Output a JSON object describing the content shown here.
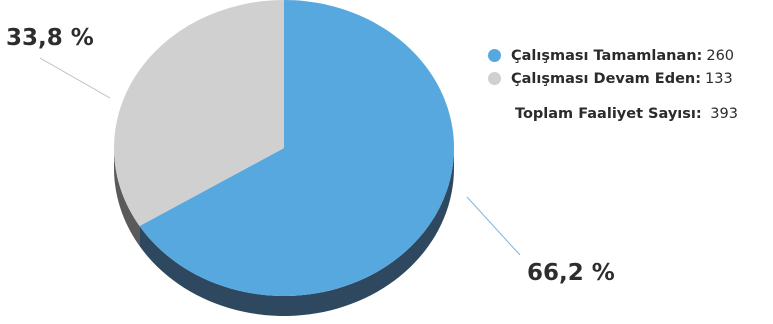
{
  "chart_data": {
    "type": "pie",
    "slices": [
      {
        "label": "Çalışması Tamamlanan:",
        "value": 260,
        "percent_label": "66,2 %",
        "color": "#58a8e0",
        "side_color": "#2e4860"
      },
      {
        "label": "Çalışması Devam Eden:",
        "value": 133,
        "percent_label": "33,8 %",
        "color": "#d0d0d0",
        "side_color": "#5a5a5a"
      }
    ],
    "total_label": "Toplam Faaliyet Sayısı:",
    "total_value": 393,
    "legend_position": "right",
    "style": "3d-pie"
  }
}
